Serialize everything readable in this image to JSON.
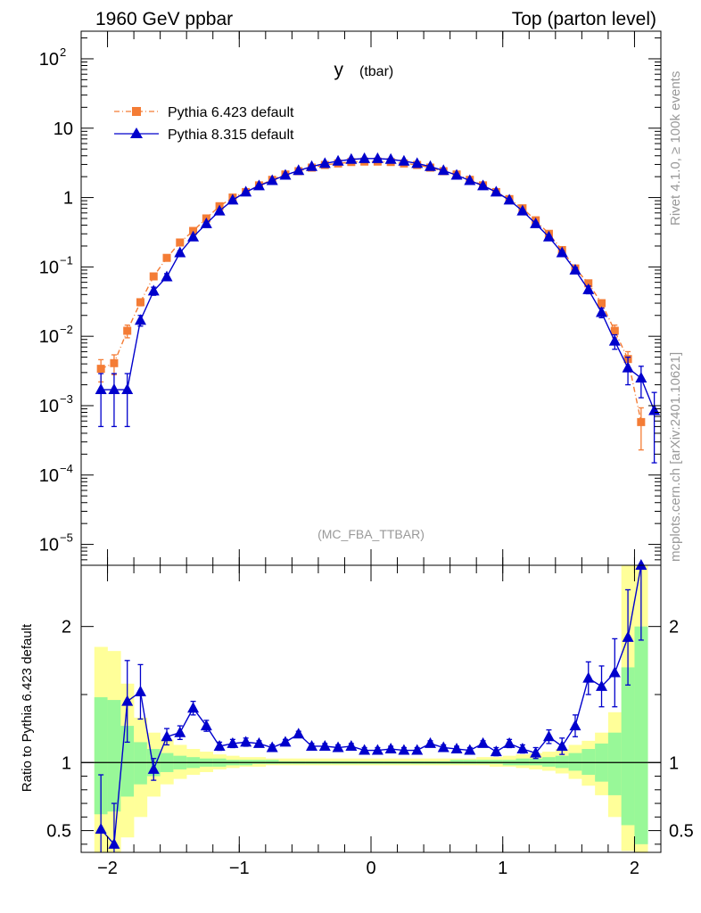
{
  "header": {
    "left": "1960 GeV ppbar",
    "right": "Top (parton level)"
  },
  "side_labels": {
    "rivet": "Rivet 4.1.0, ≥ 100k events",
    "mcplots": "mcplots.cern.ch [arXiv:2401.10621]"
  },
  "colors": {
    "pythia6": "#f47c35",
    "pythia8": "#0000cc",
    "band_inner": "#98f898",
    "band_outer": "#ffff99"
  },
  "chart_data": [
    {
      "type": "line",
      "title": "y",
      "title_sub": "(tbar)",
      "annotation": "(MC_FBA_TTBAR)",
      "yscale": "log",
      "xlim": [
        -2.2,
        2.2
      ],
      "ylim": [
        5e-06,
        250
      ],
      "y_ticks": [
        {
          "value": 100,
          "base": "10",
          "exp": "2"
        },
        {
          "value": 10,
          "base": "10",
          "exp": ""
        },
        {
          "value": 1,
          "base": "1",
          "exp": ""
        },
        {
          "value": 0.1,
          "base": "10",
          "exp": "−1"
        },
        {
          "value": 0.01,
          "base": "10",
          "exp": "−2"
        },
        {
          "value": 0.001,
          "base": "10",
          "exp": "−3"
        },
        {
          "value": 0.0001,
          "base": "10",
          "exp": "−4"
        },
        {
          "value": 1e-05,
          "base": "10",
          "exp": "−5"
        }
      ],
      "legend_position": "top-left",
      "x": [
        -2.05,
        -1.95,
        -1.85,
        -1.75,
        -1.65,
        -1.55,
        -1.45,
        -1.35,
        -1.25,
        -1.15,
        -1.05,
        -0.95,
        -0.85,
        -0.75,
        -0.65,
        -0.55,
        -0.45,
        -0.35,
        -0.25,
        -0.15,
        -0.05,
        0.05,
        0.15,
        0.25,
        0.35,
        0.45,
        0.55,
        0.65,
        0.75,
        0.85,
        0.95,
        1.05,
        1.15,
        1.25,
        1.35,
        1.45,
        1.55,
        1.65,
        1.75,
        1.85,
        1.95,
        2.05,
        2.15
      ],
      "series": [
        {
          "name": "Pythia 6.423 default",
          "marker": "square",
          "values": [
            0.0034,
            0.0041,
            0.012,
            0.031,
            0.073,
            0.135,
            0.225,
            0.33,
            0.5,
            0.75,
            1.0,
            1.2,
            1.5,
            1.8,
            2.15,
            2.4,
            2.7,
            2.95,
            3.1,
            3.25,
            3.3,
            3.3,
            3.25,
            3.1,
            2.95,
            2.7,
            2.4,
            2.15,
            1.8,
            1.5,
            1.2,
            0.95,
            0.7,
            0.47,
            0.3,
            0.175,
            0.095,
            0.058,
            0.03,
            0.012,
            0.0047,
            0.00058,
            null
          ],
          "errors": [
            0.0012,
            0.0013,
            0.0025,
            0.0035,
            0.006,
            0.008,
            0.01,
            0.012,
            0.015,
            0.02,
            0.025,
            0.03,
            0.03,
            0.035,
            0.04,
            0.04,
            0.045,
            0.05,
            0.05,
            0.05,
            0.05,
            0.05,
            0.05,
            0.05,
            0.05,
            0.045,
            0.04,
            0.04,
            0.035,
            0.03,
            0.03,
            0.025,
            0.02,
            0.015,
            0.012,
            0.01,
            0.008,
            0.006,
            0.0035,
            0.0025,
            0.0013,
            0.00035,
            null
          ]
        },
        {
          "name": "Pythia 8.315 default",
          "marker": "triangle",
          "values": [
            0.0017,
            0.0017,
            0.0017,
            0.017,
            0.045,
            0.072,
            0.16,
            0.27,
            0.42,
            0.64,
            0.92,
            1.2,
            1.48,
            1.76,
            2.1,
            2.45,
            2.8,
            3.1,
            3.35,
            3.55,
            3.65,
            3.65,
            3.55,
            3.35,
            3.1,
            2.8,
            2.45,
            2.1,
            1.76,
            1.48,
            1.2,
            0.92,
            0.64,
            0.42,
            0.27,
            0.16,
            0.09,
            0.047,
            0.022,
            0.0085,
            0.0035,
            0.0025,
            0.00085
          ],
          "errors": [
            0.0012,
            0.0012,
            0.0012,
            0.003,
            0.006,
            0.008,
            0.01,
            0.012,
            0.015,
            0.02,
            0.025,
            0.03,
            0.03,
            0.035,
            0.04,
            0.04,
            0.045,
            0.05,
            0.05,
            0.05,
            0.05,
            0.05,
            0.05,
            0.05,
            0.05,
            0.045,
            0.04,
            0.04,
            0.035,
            0.03,
            0.03,
            0.025,
            0.02,
            0.015,
            0.012,
            0.01,
            0.008,
            0.006,
            0.0035,
            0.002,
            0.0015,
            0.0012,
            0.0007
          ]
        }
      ]
    },
    {
      "type": "line",
      "ylabel": "Ratio to Pythia 6.423 default",
      "xlim": [
        -2.2,
        2.2
      ],
      "ylim": [
        0.34,
        2.45
      ],
      "x_ticks": [
        -2,
        -1,
        0,
        1,
        2
      ],
      "x_tick_labels": [
        "−2",
        "−1",
        "0",
        "1",
        "2"
      ],
      "y_ticks": [
        0.5,
        1,
        2
      ],
      "y_tick_labels": [
        "0.5",
        "1",
        "2"
      ],
      "reference_line": 1,
      "bands": {
        "x_edges": [
          -2.1,
          -2.0,
          -1.9,
          -1.8,
          -1.7,
          -1.6,
          -1.5,
          -1.4,
          -1.3,
          -1.2,
          -1.1,
          -1.0,
          -0.9,
          -0.8,
          -0.7,
          -0.6,
          -0.5,
          -0.4,
          -0.3,
          -0.2,
          -0.1,
          0.0,
          0.1,
          0.2,
          0.3,
          0.4,
          0.5,
          0.6,
          0.7,
          0.8,
          0.9,
          1.0,
          1.1,
          1.2,
          1.3,
          1.4,
          1.5,
          1.6,
          1.7,
          1.8,
          1.9,
          2.0,
          2.1
        ],
        "outer_lo": [
          0.3,
          0.3,
          0.45,
          0.6,
          0.75,
          0.84,
          0.88,
          0.91,
          0.93,
          0.95,
          0.96,
          0.97,
          0.97,
          0.98,
          0.98,
          0.98,
          0.98,
          0.98,
          0.98,
          0.98,
          0.98,
          0.98,
          0.98,
          0.98,
          0.98,
          0.98,
          0.98,
          0.98,
          0.98,
          0.98,
          0.97,
          0.97,
          0.96,
          0.95,
          0.94,
          0.92,
          0.88,
          0.83,
          0.76,
          0.6,
          0.35,
          0.3
        ],
        "outer_hi": [
          1.85,
          1.82,
          1.58,
          1.33,
          1.22,
          1.17,
          1.13,
          1.1,
          1.08,
          1.06,
          1.05,
          1.04,
          1.04,
          1.03,
          1.03,
          1.03,
          1.03,
          1.03,
          1.03,
          1.03,
          1.03,
          1.03,
          1.03,
          1.03,
          1.03,
          1.03,
          1.03,
          1.03,
          1.03,
          1.04,
          1.04,
          1.05,
          1.06,
          1.07,
          1.08,
          1.1,
          1.13,
          1.16,
          1.22,
          1.37,
          2.45,
          2.45
        ],
        "inner_lo": [
          0.62,
          0.64,
          0.75,
          0.84,
          0.9,
          0.93,
          0.95,
          0.96,
          0.97,
          0.97,
          0.98,
          0.98,
          0.99,
          0.99,
          0.99,
          0.99,
          0.99,
          0.99,
          0.99,
          0.99,
          0.99,
          0.99,
          0.99,
          0.99,
          0.99,
          0.99,
          0.99,
          0.99,
          0.99,
          0.99,
          0.99,
          0.98,
          0.98,
          0.98,
          0.97,
          0.96,
          0.94,
          0.91,
          0.86,
          0.76,
          0.54,
          0.4
        ],
        "inner_hi": [
          1.48,
          1.46,
          1.27,
          1.15,
          1.1,
          1.07,
          1.05,
          1.04,
          1.03,
          1.03,
          1.02,
          1.02,
          1.02,
          1.02,
          1.01,
          1.01,
          1.01,
          1.01,
          1.01,
          1.01,
          1.01,
          1.01,
          1.01,
          1.01,
          1.01,
          1.01,
          1.01,
          1.02,
          1.02,
          1.02,
          1.02,
          1.02,
          1.03,
          1.03,
          1.04,
          1.05,
          1.07,
          1.1,
          1.14,
          1.22,
          1.7,
          2.0
        ]
      },
      "series": [
        {
          "name": "Pythia 8.315 default / Pythia 6.423 default",
          "marker": "triangle",
          "values": [
            0.51,
            0.4,
            1.45,
            1.52,
            0.95,
            1.19,
            1.22,
            1.4,
            1.27,
            1.12,
            1.14,
            1.15,
            1.14,
            1.11,
            1.15,
            1.21,
            1.12,
            1.12,
            1.11,
            1.12,
            1.09,
            1.09,
            1.1,
            1.09,
            1.09,
            1.14,
            1.11,
            1.1,
            1.09,
            1.14,
            1.08,
            1.14,
            1.1,
            1.07,
            1.19,
            1.12,
            1.27,
            1.62,
            1.56,
            1.66,
            1.92,
            2.5,
            null
          ],
          "errors": [
            0.4,
            0.3,
            0.3,
            0.2,
            0.08,
            0.06,
            0.05,
            0.05,
            0.04,
            0.03,
            0.03,
            0.03,
            0.02,
            0.02,
            0.02,
            0.02,
            0.02,
            0.02,
            0.02,
            0.02,
            0.02,
            0.02,
            0.02,
            0.02,
            0.02,
            0.02,
            0.02,
            0.02,
            0.02,
            0.02,
            0.03,
            0.03,
            0.03,
            0.04,
            0.05,
            0.06,
            0.08,
            0.12,
            0.15,
            0.25,
            0.35,
            0.6,
            null
          ]
        }
      ]
    }
  ]
}
